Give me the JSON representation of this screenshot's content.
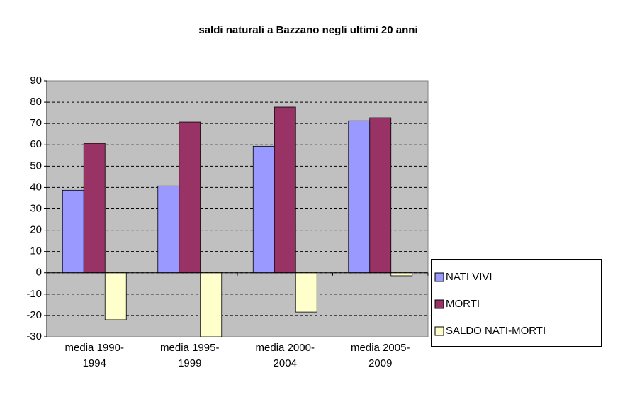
{
  "chart_data": {
    "type": "bar",
    "title": "saldi naturali a Bazzano negli ultimi 20 anni",
    "categories": [
      "media 1990-1994",
      "media 1995-1999",
      "media 2000-2004",
      "media 2005-2009"
    ],
    "series": [
      {
        "name": "NATI VIVI",
        "color": "#9999ff",
        "values": [
          38.7,
          40.7,
          59.3,
          71.3
        ]
      },
      {
        "name": "MORTI",
        "color": "#993366",
        "values": [
          60.7,
          70.7,
          77.7,
          72.7
        ]
      },
      {
        "name": "SALDO NATI-MORTI",
        "color": "#ffffcc",
        "values": [
          -22,
          -30,
          -18.4,
          -1.4
        ]
      }
    ],
    "ylim": [
      -30,
      90
    ],
    "yticks": [
      -30,
      -20,
      -10,
      0,
      10,
      20,
      30,
      40,
      50,
      60,
      70,
      80,
      90
    ],
    "grid": true,
    "legend": "right"
  }
}
